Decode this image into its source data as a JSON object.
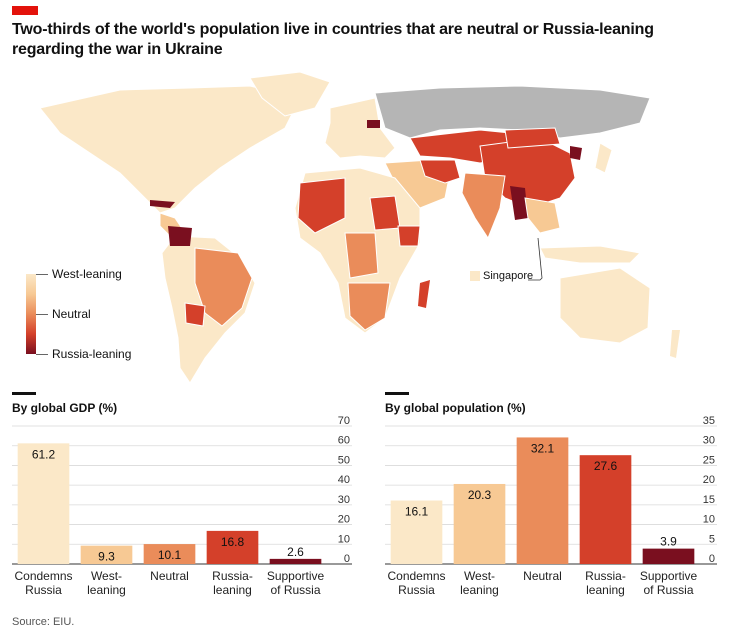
{
  "title": "Two-thirds of the world's population live in countries that are neutral or Russia-leaning regarding the war in Ukraine",
  "legend": {
    "labels": [
      "West-leaning",
      "Neutral",
      "Russia-leaning"
    ]
  },
  "map_annotation": "Singapore",
  "colors": {
    "condemns": "#fbe8c8",
    "west": "#f7c994",
    "neutral": "#ea8c5a",
    "russia_leaning": "#d4402a",
    "supportive": "#7a0f1f",
    "accent": "#e3120b",
    "no_data": "#b5b5b5"
  },
  "chart_data": [
    {
      "type": "bar",
      "title": "By global GDP (%)",
      "categories": [
        "Condemns\nRussia",
        "West-\nleaning",
        "Neutral",
        "Russia-\nleaning",
        "Supportive\nof Russia"
      ],
      "values": [
        61.2,
        9.3,
        10.1,
        16.8,
        2.6
      ],
      "ylim": [
        0,
        70
      ],
      "yticks": [
        0,
        10,
        20,
        30,
        40,
        50,
        60,
        70
      ],
      "grid": true,
      "axis_side": "right"
    },
    {
      "type": "bar",
      "title": "By global population (%)",
      "categories": [
        "Condemns\nRussia",
        "West-\nleaning",
        "Neutral",
        "Russia-\nleaning",
        "Supportive\nof Russia"
      ],
      "values": [
        16.1,
        20.3,
        32.1,
        27.6,
        3.9
      ],
      "ylim": [
        0,
        35
      ],
      "yticks": [
        0,
        5,
        10,
        15,
        20,
        25,
        30,
        35
      ],
      "grid": true,
      "axis_side": "right"
    }
  ],
  "source": "Source: EIU."
}
